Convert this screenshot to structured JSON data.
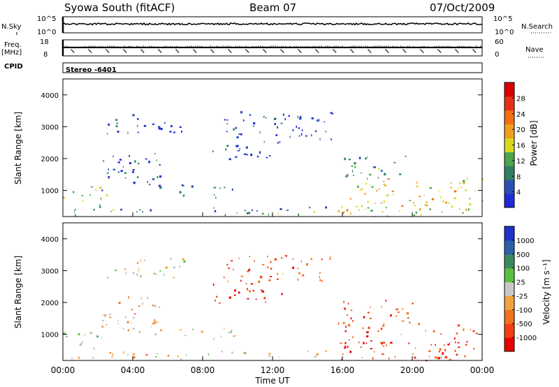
{
  "header": {
    "station": "Syowa South (fitACF)",
    "beam": "Beam 07",
    "date": "07/Oct/2009"
  },
  "summary": {
    "nsky_label": "N.Sky",
    "nsky_ticks": [
      "10^5",
      "10^0"
    ],
    "nsearch_label": "N.Search",
    "nsearch_ticks": [
      "10^5",
      "10^0"
    ],
    "freq_label": "Freq.",
    "freq_unit": "[MHz]",
    "freq_ticks": [
      "18",
      "8"
    ],
    "nave_label": "Nave",
    "nave_ticks": [
      "60",
      "0"
    ],
    "cpid_label": "CPID",
    "cpid_value": "Stereo -6401"
  },
  "colors": {
    "power_scale": [
      "#1f2bd6",
      "#2a50b8",
      "#2f7f62",
      "#4aa64a",
      "#d8d820",
      "#f0a020",
      "#f07018",
      "#e83018",
      "#d80000"
    ],
    "velocity_scale": [
      "#e80000",
      "#f04010",
      "#f07020",
      "#f4a040",
      "#c8c8c8",
      "#58c040",
      "#3a8a60",
      "#2a60a8",
      "#2030c8"
    ]
  },
  "chart_data": [
    {
      "type": "heatmap",
      "name_role": "power",
      "ylabel": "Slant Range [km]",
      "yticks": [
        1000,
        2000,
        3000,
        4000
      ],
      "ylim": [
        180,
        4500
      ],
      "xlim": [
        0,
        24
      ],
      "colorbar": {
        "label": "Power [dB]",
        "ticks": [
          "4",
          "8",
          "12",
          "16",
          "20",
          "24",
          "28"
        ],
        "range": [
          0,
          30
        ]
      },
      "regions": [
        {
          "t0": 0.0,
          "t1": 2.6,
          "r0": 550,
          "r1": 1150,
          "level": 0.45
        },
        {
          "t0": 2.2,
          "t1": 5.8,
          "r0": 1000,
          "r1": 2200,
          "level": 0.15
        },
        {
          "t0": 2.5,
          "t1": 7.0,
          "r0": 2800,
          "r1": 3400,
          "level": 0.1
        },
        {
          "t0": 6.5,
          "t1": 10.0,
          "r0": 800,
          "r1": 1200,
          "level": 0.2
        },
        {
          "t0": 8.5,
          "t1": 12.5,
          "r0": 2000,
          "r1": 2600,
          "level": 0.12
        },
        {
          "t0": 9.0,
          "t1": 15.5,
          "r0": 2600,
          "r1": 3500,
          "level": 0.12
        },
        {
          "t0": 15.5,
          "t1": 24.0,
          "r0": 200,
          "r1": 1400,
          "level": 0.55
        },
        {
          "t0": 16.0,
          "t1": 20.0,
          "r0": 1400,
          "r1": 2100,
          "level": 0.3
        },
        {
          "t0": 0.0,
          "t1": 15.0,
          "r0": 250,
          "r1": 500,
          "level": 0.3
        }
      ]
    },
    {
      "type": "heatmap",
      "name_role": "velocity",
      "ylabel": "Slant Range [km]",
      "yticks": [
        1000,
        2000,
        3000,
        4000
      ],
      "ylim": [
        180,
        4500
      ],
      "xlim": [
        0,
        24
      ],
      "xlabel": "Time UT",
      "xticks": [
        "00:00",
        "04:00",
        "08:00",
        "12:00",
        "16:00",
        "20:00",
        "00:00"
      ],
      "colorbar": {
        "label": "Velocity [m s⁻¹]",
        "ticks": [
          "-1000",
          "-500",
          "-100",
          "-25",
          "25",
          "100",
          "500",
          "1000"
        ]
      },
      "regions": [
        {
          "t0": 0.0,
          "t1": 2.6,
          "r0": 550,
          "r1": 1150,
          "level": 0.62
        },
        {
          "t0": 2.2,
          "t1": 5.8,
          "r0": 1000,
          "r1": 2200,
          "level": 0.38
        },
        {
          "t0": 2.5,
          "t1": 7.0,
          "r0": 2800,
          "r1": 3400,
          "level": 0.48
        },
        {
          "t0": 6.5,
          "t1": 10.0,
          "r0": 800,
          "r1": 1200,
          "level": 0.52
        },
        {
          "t0": 8.5,
          "t1": 12.5,
          "r0": 2000,
          "r1": 2600,
          "level": 0.12
        },
        {
          "t0": 9.0,
          "t1": 15.5,
          "r0": 2600,
          "r1": 3500,
          "level": 0.22
        },
        {
          "t0": 15.5,
          "t1": 24.0,
          "r0": 200,
          "r1": 1400,
          "level": 0.15
        },
        {
          "t0": 16.0,
          "t1": 20.0,
          "r0": 1400,
          "r1": 2100,
          "level": 0.2
        },
        {
          "t0": 0.0,
          "t1": 15.0,
          "r0": 250,
          "r1": 500,
          "level": 0.45
        }
      ]
    }
  ]
}
